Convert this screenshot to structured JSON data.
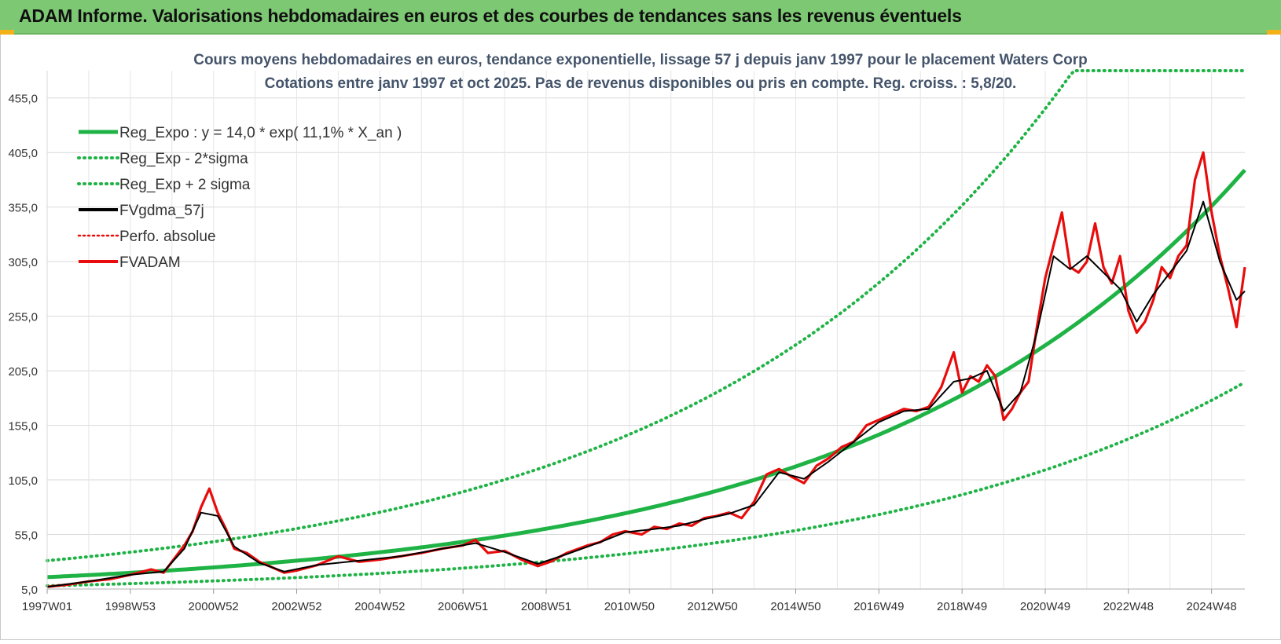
{
  "banner": {
    "title": "ADAM Informe. Valorisations hebdomadaires en euros et des courbes de tendances sans les revenus éventuels"
  },
  "colors": {
    "banner_bg": "#7dc873",
    "regression": "#1fb346",
    "fvgdma": "#000000",
    "fvadam": "#e80c0c",
    "perfo": "#e80c0c",
    "accent": "#f2b118"
  },
  "chart_data": {
    "type": "line",
    "title": "Cours moyens hebdomadaires en euros, tendance exponentielle, lissage 57 j depuis janv 1997 pour le placement Waters Corp",
    "subtitle": "Cotations entre janv 1997 et oct 2025. Pas de revenus disponibles ou pris en compte. Reg. croiss. : 5,8/20.",
    "xlabel": "",
    "ylabel": "",
    "ylim": [
      5,
      480
    ],
    "xlim": [
      1997.0,
      2025.8
    ],
    "y_ticks": [
      "5,0",
      "55,0",
      "105,0",
      "155,0",
      "205,0",
      "255,0",
      "305,0",
      "355,0",
      "405,0",
      "455,0"
    ],
    "x_ticks": [
      "1997W01",
      "1998W53",
      "2000W52",
      "2002W52",
      "2004W52",
      "2006W51",
      "2008W51",
      "2010W50",
      "2012W50",
      "2014W50",
      "2016W49",
      "2018W49",
      "2020W49",
      "2022W48",
      "2024W48"
    ],
    "legend": [
      {
        "label": "Reg_Expo : y = 14,0 * exp( 11,1% *  X_an )",
        "color": "#1fb346",
        "style": "solid"
      },
      {
        "label": "Reg_Exp - 2*sigma",
        "color": "#1fb346",
        "style": "dotted"
      },
      {
        "label": "Reg_Exp + 2 sigma",
        "color": "#1fb346",
        "style": "dotted"
      },
      {
        "label": "FVgdma_57j",
        "color": "#000000",
        "style": "solid"
      },
      {
        "label": "Perfo. absolue",
        "color": "#e80c0c",
        "style": "dotted"
      },
      {
        "label": "FVADAM",
        "color": "#e80c0c",
        "style": "solid"
      }
    ],
    "regression": {
      "a": 14.0,
      "b": 0.111,
      "lower_factor": 0.5,
      "upper_factor": 1.95,
      "cap": 480
    },
    "series": [
      {
        "name": "FVADAM",
        "x": [
          1997.0,
          1997.5,
          1998.0,
          1998.5,
          1999.0,
          1999.5,
          1999.8,
          2000.1,
          2000.3,
          2000.5,
          2000.7,
          2000.9,
          2001.1,
          2001.3,
          2001.5,
          2001.8,
          2002.1,
          2002.4,
          2002.7,
          2003.0,
          2003.5,
          2004.0,
          2004.5,
          2005.0,
          2005.5,
          2006.0,
          2006.5,
          2007.0,
          2007.3,
          2007.6,
          2008.0,
          2008.4,
          2008.8,
          2009.1,
          2009.5,
          2010.0,
          2010.3,
          2010.6,
          2010.9,
          2011.3,
          2011.6,
          2011.9,
          2012.2,
          2012.5,
          2012.8,
          2013.1,
          2013.4,
          2013.7,
          2014.0,
          2014.3,
          2014.6,
          2014.9,
          2015.2,
          2015.5,
          2015.8,
          2016.1,
          2016.4,
          2016.7,
          2017.0,
          2017.3,
          2017.6,
          2017.9,
          2018.2,
          2018.5,
          2018.8,
          2019.0,
          2019.2,
          2019.4,
          2019.6,
          2019.8,
          2020.0,
          2020.2,
          2020.4,
          2020.6,
          2020.8,
          2021.0,
          2021.2,
          2021.4,
          2021.6,
          2021.8,
          2022.0,
          2022.2,
          2022.4,
          2022.6,
          2022.8,
          2023.0,
          2023.2,
          2023.4,
          2023.6,
          2023.8,
          2024.0,
          2024.2,
          2024.4,
          2024.6,
          2024.8,
          2025.0,
          2025.2,
          2025.4,
          2025.6,
          2025.8
        ],
        "values": [
          7,
          9,
          12,
          14,
          18,
          23,
          20,
          35,
          45,
          58,
          80,
          97,
          75,
          60,
          42,
          38,
          30,
          25,
          20,
          22,
          27,
          35,
          30,
          32,
          35,
          38,
          42,
          45,
          50,
          38,
          40,
          32,
          26,
          30,
          38,
          45,
          48,
          55,
          58,
          55,
          62,
          60,
          65,
          63,
          70,
          72,
          75,
          70,
          85,
          110,
          115,
          108,
          102,
          118,
          125,
          135,
          140,
          155,
          160,
          165,
          170,
          168,
          172,
          190,
          222,
          185,
          200,
          195,
          210,
          200,
          160,
          170,
          185,
          195,
          245,
          290,
          320,
          350,
          300,
          295,
          305,
          340,
          300,
          285,
          310,
          260,
          240,
          250,
          270,
          300,
          290,
          310,
          320,
          380,
          405,
          350,
          310,
          280,
          245,
          300
        ]
      },
      {
        "name": "FVgdma_57j",
        "x": [
          1997.0,
          1998.0,
          1999.0,
          1999.8,
          2000.3,
          2000.7,
          2001.1,
          2001.5,
          2002.1,
          2002.7,
          2003.5,
          2004.5,
          2005.5,
          2006.5,
          2007.3,
          2008.0,
          2008.8,
          2009.5,
          2010.3,
          2010.9,
          2011.6,
          2012.2,
          2012.8,
          2013.4,
          2014.0,
          2014.6,
          2015.2,
          2015.8,
          2016.4,
          2017.0,
          2017.6,
          2018.2,
          2018.8,
          2019.2,
          2019.6,
          2020.0,
          2020.4,
          2020.8,
          2021.2,
          2021.6,
          2022.0,
          2022.4,
          2022.8,
          2023.2,
          2023.6,
          2024.0,
          2024.4,
          2024.8,
          2025.2,
          2025.6,
          2025.8
        ],
        "values": [
          7,
          12,
          18,
          21,
          42,
          75,
          72,
          44,
          29,
          21,
          27,
          31,
          35,
          42,
          47,
          39,
          28,
          37,
          48,
          57,
          60,
          63,
          69,
          74,
          82,
          112,
          106,
          122,
          140,
          158,
          168,
          170,
          195,
          198,
          205,
          168,
          185,
          240,
          310,
          298,
          310,
          295,
          280,
          250,
          275,
          295,
          315,
          360,
          305,
          270,
          278
        ]
      }
    ]
  }
}
